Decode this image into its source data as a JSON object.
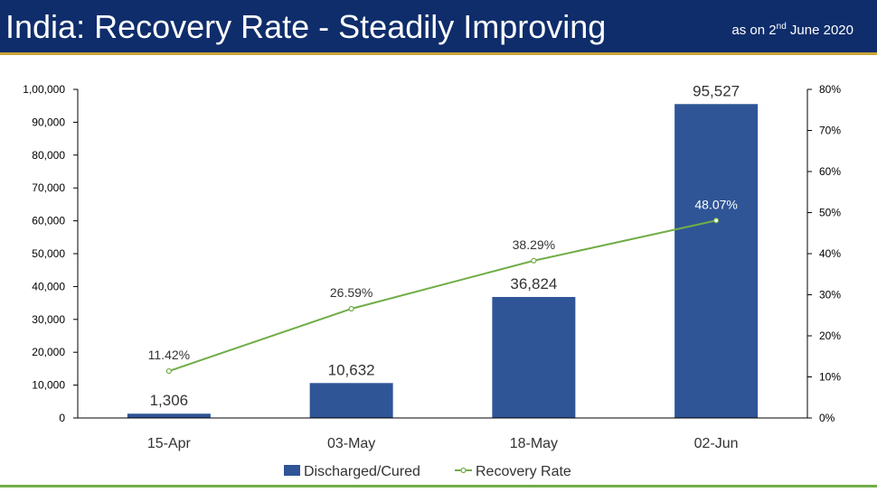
{
  "header": {
    "title": "India: Recovery Rate - Steadily Improving",
    "date_prefix": "as on 2",
    "date_sup": "nd",
    "date_suffix": " June 2020"
  },
  "colors": {
    "header_bg": "#0f2d6b",
    "bar": "#2f5597",
    "line": "#70ad47",
    "accent_gold": "#c9a43a"
  },
  "chart_data": {
    "type": "bar",
    "categories": [
      "15-Apr",
      "03-May",
      "18-May",
      "02-Jun"
    ],
    "series": [
      {
        "name": "Discharged/Cured",
        "type": "bar",
        "axis": "left",
        "values": [
          1306,
          10632,
          36824,
          95527
        ],
        "labels": [
          "1,306",
          "10,632",
          "36,824",
          "95,527"
        ]
      },
      {
        "name": "Recovery Rate",
        "type": "line",
        "axis": "right",
        "values": [
          11.42,
          26.59,
          38.29,
          48.07
        ],
        "labels": [
          "11.42%",
          "26.59%",
          "38.29%",
          "48.07%"
        ]
      }
    ],
    "y_left": {
      "min": 0,
      "max": 100000,
      "ticks": [
        "0",
        "10,000",
        "20,000",
        "30,000",
        "40,000",
        "50,000",
        "60,000",
        "70,000",
        "80,000",
        "90,000",
        "1,00,000"
      ]
    },
    "y_right": {
      "min": 0,
      "max": 80,
      "ticks": [
        "0%",
        "10%",
        "20%",
        "30%",
        "40%",
        "50%",
        "60%",
        "70%",
        "80%"
      ]
    },
    "legend": [
      "Discharged/Cured",
      "Recovery Rate"
    ],
    "legend_position": "bottom",
    "grid": false
  }
}
